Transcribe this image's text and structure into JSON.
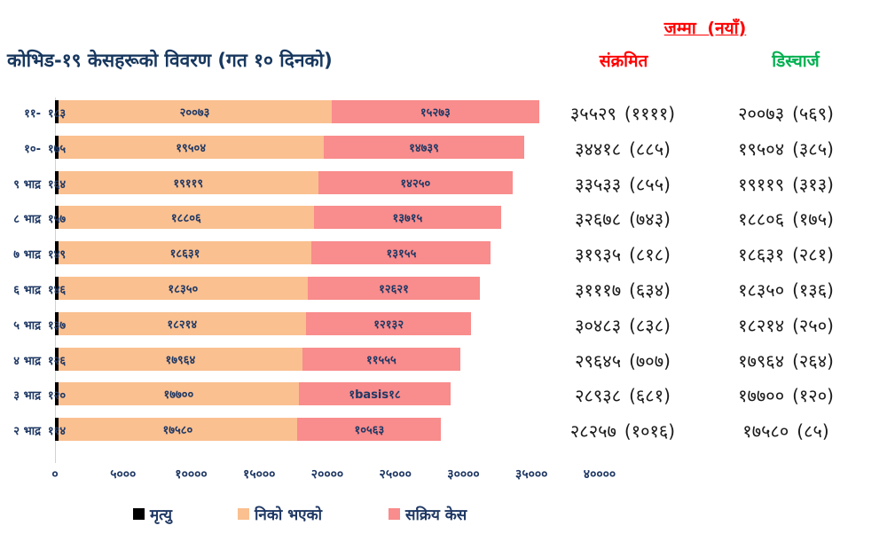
{
  "title": "कोभिड-१९ केसहरूको विवरण (गत १० दिनको)",
  "right_panel": {
    "header": "जम्मा (नयाँ)",
    "infected_label": "संक्रमित",
    "discharged_label": "डिस्चार्ज",
    "header_color": "#FF0000",
    "infected_color": "#FF0000",
    "discharged_color": "#00B050"
  },
  "chart_data": {
    "type": "bar",
    "orientation": "horizontal",
    "title": "कोभिड-१९ केसहरूको विवरण (गत १० दिनको)",
    "categories": [
      "११-",
      "१०-",
      "९ भाद्र",
      "८ भाद्र",
      "७ भाद्र",
      "६ भाद्र",
      "५ भाद्र",
      "४ भाद्र",
      "३ भाद्र",
      "२ भाद्र"
    ],
    "series": [
      {
        "name": "मृत्यु",
        "color": "#000000",
        "values": [
          183,
          175,
          164,
          157,
          149,
          146,
          137,
          126,
          120,
          114
        ]
      },
      {
        "name": "निको भएको",
        "color": "#FAC090",
        "values": [
          20073,
          19504,
          19119,
          18806,
          18631,
          18350,
          18214,
          17964,
          17700,
          17580
        ]
      },
      {
        "name": "सक्रिय केस",
        "color": "#F98C8C",
        "values": [
          15273,
          14739,
          14250,
          13715,
          13155,
          12621,
          12132,
          11555,
          11118,
          10563
        ]
      }
    ],
    "infected_totals": [
      35529,
      34418,
      33533,
      32678,
      31935,
      31117,
      30483,
      29645,
      28938,
      28257
    ],
    "infected_new": [
      1111,
      885,
      855,
      743,
      818,
      634,
      838,
      707,
      681,
      1016
    ],
    "discharged_totals": [
      20073,
      19504,
      19119,
      18806,
      18631,
      18350,
      18214,
      17964,
      17700,
      17580
    ],
    "discharged_new": [
      569,
      385,
      313,
      175,
      281,
      136,
      250,
      264,
      120,
      85
    ],
    "xlim": [
      0,
      40000
    ],
    "x_tick_values": [
      0,
      5000,
      10000,
      15000,
      20000,
      25000,
      30000,
      35000,
      40000
    ],
    "x_tick_labels": [
      "०",
      "५०००",
      "१००००",
      "१५०००",
      "२००००",
      "२५०००",
      "३००००",
      "३५०००",
      "४००००"
    ],
    "grid": false,
    "legend_position": "bottom"
  },
  "rows": [
    {
      "category": "११-",
      "death": "१८३",
      "recovered": "२००७३",
      "active": "१५२७३",
      "infected_total": "३५५२९",
      "infected_new": "(११११)",
      "discharged_total": "२००७३",
      "discharged_new": "(५६९)"
    },
    {
      "category": "१०-",
      "death": "१७५",
      "recovered": "१९५०४",
      "active": "१४७३९",
      "infected_total": "३४४१८",
      "infected_new": "(८८५)",
      "discharged_total": "१९५०४",
      "discharged_new": "(३८५)"
    },
    {
      "category": "९ भाद्र",
      "death": "१६४",
      "recovered": "१९११९",
      "active": "१४२५०",
      "infected_total": "३३५३३",
      "infected_new": "(८५५)",
      "discharged_total": "१९११९",
      "discharged_new": "(३१३)"
    },
    {
      "category": "८ भाद्र",
      "death": "१५७",
      "recovered": "१८८०६",
      "active": "१३७१५",
      "infected_total": "३२६७८",
      "infected_new": "(७४३)",
      "discharged_total": "१८८०६",
      "discharged_new": "(१७५)"
    },
    {
      "category": "७ भाद्र",
      "death": "१४९",
      "recovered": "१८६३१",
      "active": "१३१५५",
      "infected_total": "३१९३५",
      "infected_new": "(८१८)",
      "discharged_total": "१८६३१",
      "discharged_new": "(२८१)"
    },
    {
      "category": "६ भाद्र",
      "death": "१४६",
      "recovered": "१८३५०",
      "active": "१२६२१",
      "infected_total": "३१११७",
      "infected_new": "(६३४)",
      "discharged_total": "१८३५०",
      "discharged_new": "(१३६)"
    },
    {
      "category": "५ भाद्र",
      "death": "१३७",
      "recovered": "१८२१४",
      "active": "१२१३२",
      "infected_total": "३०४८३",
      "infected_new": "(८३८)",
      "discharged_total": "१८२१४",
      "discharged_new": "(२५०)"
    },
    {
      "category": "४ भाद्र",
      "death": "१२६",
      "recovered": "१७९६४",
      "active": "११५५५",
      "infected_total": "२९६४५",
      "infected_new": "(७०७)",
      "discharged_total": "१७९६४",
      "discharged_new": "(२६४)"
    },
    {
      "category": "३ भाद्र",
      "death": "१२०",
      "recovered": "१७७००",
      "active": "१basis१८",
      "infected_total": "२८९३८",
      "infected_new": "(६८१)",
      "discharged_total": "१७७००",
      "discharged_new": "(१२०)"
    },
    {
      "category": "२ भाद्र",
      "death": "११४",
      "recovered": "१७५८०",
      "active": "१०५६३",
      "infected_total": "२८२५७",
      "infected_new": "(१०१६)",
      "discharged_total": "१७५८०",
      "discharged_new": "(८५)"
    }
  ]
}
